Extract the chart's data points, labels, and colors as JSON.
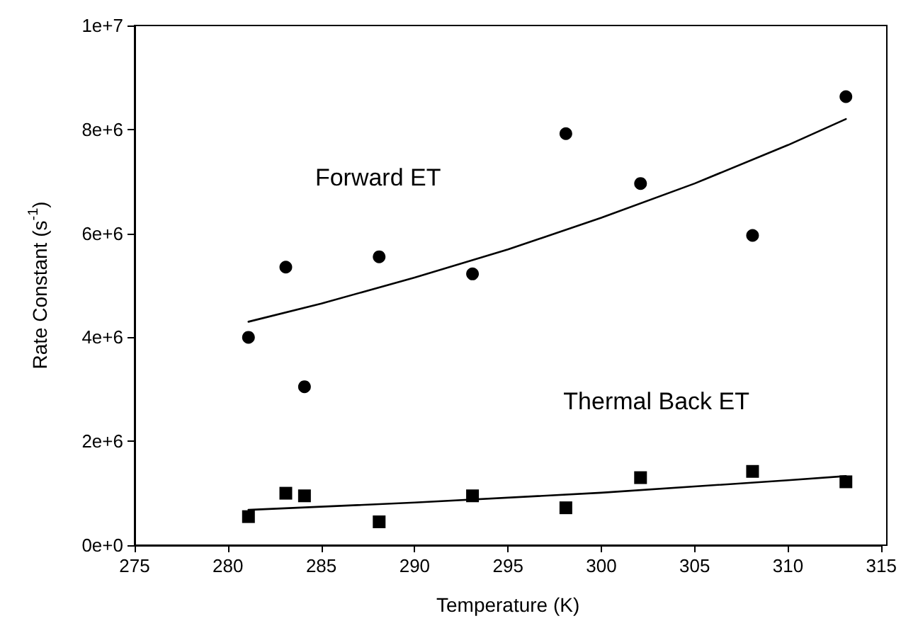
{
  "chart_data": {
    "type": "scatter",
    "xlabel": "Temperature (K)",
    "ylabel": "Rate Constant (s$^{-1}$)",
    "xlim": [
      275,
      315
    ],
    "xticks": [
      275,
      280,
      285,
      290,
      295,
      300,
      305,
      310,
      315
    ],
    "ylim": [
      0,
      10000000
    ],
    "yticks": [
      {
        "value": 0,
        "label": "0e+0"
      },
      {
        "value": 2000000,
        "label": "2e+6"
      },
      {
        "value": 4000000,
        "label": "4e+6"
      },
      {
        "value": 6000000,
        "label": "6e+6"
      },
      {
        "value": 8000000,
        "label": "8e+6"
      },
      {
        "value": 10000000,
        "label": "1e+7"
      }
    ],
    "grid": false,
    "annotations": [
      "Forward ET",
      "Thermal Back ET"
    ],
    "series": [
      {
        "marker": "circle",
        "color": "#000000",
        "x": [
          281.1,
          283.1,
          284.1,
          288.1,
          293.1,
          298.1,
          302.1,
          308.1,
          313.1
        ],
        "values": [
          4000000,
          5350000,
          3050000,
          5550000,
          5220000,
          7920000,
          6960000,
          5960000,
          8630000
        ]
      },
      {
        "marker": "square",
        "color": "#000000",
        "x": [
          281.1,
          283.1,
          284.1,
          288.1,
          293.1,
          298.1,
          302.1,
          308.1,
          313.1
        ],
        "values": [
          550000,
          1000000,
          950000,
          450000,
          950000,
          720000,
          1300000,
          1420000,
          1220000
        ]
      },
      {
        "type": "line",
        "marker": "none",
        "line_style": "solid",
        "color": "#000000",
        "x": [
          281.1,
          285,
          290,
          295,
          300,
          305,
          310,
          313.1
        ],
        "values": [
          4300000,
          4650000,
          5150000,
          5690000,
          6300000,
          6960000,
          7700000,
          8200000
        ]
      },
      {
        "type": "line",
        "marker": "none",
        "line_style": "solid",
        "color": "#000000",
        "x": [
          281.1,
          290,
          300,
          310,
          313.1
        ],
        "values": [
          680000,
          820000,
          1010000,
          1250000,
          1330000
        ]
      }
    ]
  }
}
